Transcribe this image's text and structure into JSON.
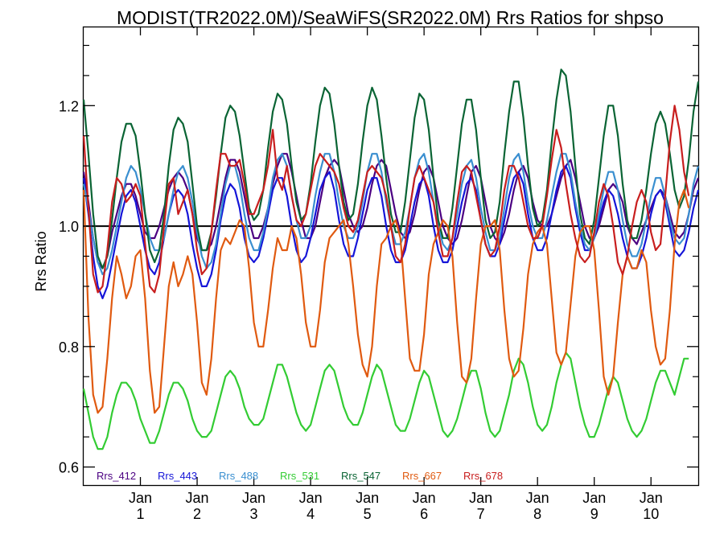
{
  "chart_data": {
    "type": "line",
    "title": "MODIST(TR2022.0M)/SeaWiFS(SR2022.0M)  Rrs Ratios for shpso",
    "ylabel": "Rrs Ratio",
    "xlabel": "",
    "ylim": [
      0.57,
      1.33
    ],
    "y_ticks": [
      {
        "value": 0.6,
        "label": "0.6"
      },
      {
        "value": 0.8,
        "label": "0.8"
      },
      {
        "value": 1.0,
        "label": "1.0"
      },
      {
        "value": 1.2,
        "label": "1.2"
      }
    ],
    "x_ticks": [
      {
        "month": 12,
        "top": "Jan",
        "bottom": "1"
      },
      {
        "month": 24,
        "top": "Jan",
        "bottom": "2"
      },
      {
        "month": 36,
        "top": "Jan",
        "bottom": "3"
      },
      {
        "month": 48,
        "top": "Jan",
        "bottom": "4"
      },
      {
        "month": 60,
        "top": "Jan",
        "bottom": "5"
      },
      {
        "month": 72,
        "top": "Jan",
        "bottom": "6"
      },
      {
        "month": 84,
        "top": "Jan",
        "bottom": "7"
      },
      {
        "month": 96,
        "top": "Jan",
        "bottom": "8"
      },
      {
        "month": 108,
        "top": "Jan",
        "bottom": "9"
      },
      {
        "month": 120,
        "top": "Jan",
        "bottom": "10"
      }
    ],
    "xlim": [
      0,
      130
    ],
    "reference_line": 1.0,
    "grid": false,
    "legend_position": "bottom-left inside plot",
    "series": [
      {
        "name": "Rrs_412",
        "color": "#4b0082",
        "values": [
          1.09,
          1.04,
          0.98,
          0.94,
          0.93,
          0.95,
          0.99,
          1.02,
          1.05,
          1.07,
          1.07,
          1.05,
          1.02,
          0.99,
          0.98,
          0.98,
          1.0,
          1.03,
          1.06,
          1.08,
          1.09,
          1.08,
          1.06,
          1.02,
          0.98,
          0.96,
          0.96,
          0.97,
          1.0,
          1.04,
          1.08,
          1.11,
          1.11,
          1.09,
          1.05,
          1.01,
          0.98,
          0.98,
          1.0,
          1.03,
          1.07,
          1.1,
          1.12,
          1.12,
          1.09,
          1.05,
          1.01,
          0.98,
          0.98,
          1.0,
          1.04,
          1.08,
          1.1,
          1.11,
          1.1,
          1.06,
          1.02,
          1.0,
          0.99,
          1.0,
          1.03,
          1.07,
          1.1,
          1.11,
          1.1,
          1.06,
          1.02,
          0.99,
          0.98,
          0.99,
          1.02,
          1.06,
          1.09,
          1.1,
          1.08,
          1.04,
          1.0,
          0.98,
          0.97,
          0.98,
          1.01,
          1.05,
          1.09,
          1.1,
          1.08,
          1.04,
          1.0,
          0.98,
          0.97,
          0.99,
          1.02,
          1.06,
          1.09,
          1.1,
          1.08,
          1.04,
          1.01,
          1.0,
          1.0,
          1.02,
          1.05,
          1.08,
          1.1,
          1.11,
          1.08,
          1.04,
          1.0,
          0.98,
          0.98,
          1.0,
          1.03,
          1.06,
          1.07,
          1.06,
          1.04,
          1.0,
          0.98,
          0.97,
          0.99,
          1.01,
          1.03,
          1.05,
          1.06,
          1.05,
          1.02,
          0.99,
          0.98,
          0.99,
          1.02,
          1.06,
          1.08
        ]
      },
      {
        "name": "Rrs_443",
        "color": "#1515d8",
        "values": [
          1.08,
          1.02,
          0.95,
          0.9,
          0.88,
          0.9,
          0.94,
          0.98,
          1.02,
          1.05,
          1.06,
          1.04,
          1.0,
          0.96,
          0.93,
          0.92,
          0.94,
          0.98,
          1.02,
          1.05,
          1.06,
          1.05,
          1.02,
          0.97,
          0.93,
          0.9,
          0.9,
          0.92,
          0.96,
          1.01,
          1.05,
          1.07,
          1.06,
          1.03,
          0.98,
          0.95,
          0.94,
          0.95,
          0.98,
          1.02,
          1.06,
          1.08,
          1.08,
          1.05,
          1.0,
          0.96,
          0.94,
          0.95,
          0.98,
          1.02,
          1.06,
          1.08,
          1.09,
          1.06,
          1.01,
          0.97,
          0.95,
          0.95,
          0.98,
          1.02,
          1.06,
          1.08,
          1.08,
          1.05,
          1.0,
          0.96,
          0.94,
          0.94,
          0.96,
          1.0,
          1.04,
          1.07,
          1.08,
          1.05,
          1.0,
          0.96,
          0.94,
          0.94,
          0.96,
          1.0,
          1.04,
          1.07,
          1.08,
          1.06,
          1.01,
          0.97,
          0.95,
          0.95,
          0.97,
          1.01,
          1.05,
          1.08,
          1.09,
          1.07,
          1.02,
          0.98,
          0.96,
          0.96,
          0.98,
          1.02,
          1.06,
          1.09,
          1.1,
          1.08,
          1.03,
          0.99,
          0.96,
          0.96,
          0.98,
          1.01,
          1.04,
          1.06,
          1.05,
          1.02,
          0.98,
          0.95,
          0.93,
          0.93,
          0.95,
          0.98,
          1.02,
          1.05,
          1.06,
          1.04,
          1.0,
          0.96,
          0.95,
          0.96,
          0.99,
          1.03,
          1.06
        ]
      },
      {
        "name": "Rrs_488",
        "color": "#3a8fd0",
        "values": [
          1.07,
          1.03,
          0.98,
          0.94,
          0.92,
          0.93,
          0.96,
          1.0,
          1.04,
          1.08,
          1.1,
          1.09,
          1.06,
          1.02,
          0.98,
          0.96,
          0.96,
          0.98,
          1.02,
          1.06,
          1.09,
          1.1,
          1.08,
          1.04,
          0.99,
          0.95,
          0.93,
          0.94,
          0.97,
          1.02,
          1.07,
          1.1,
          1.1,
          1.07,
          1.02,
          0.98,
          0.96,
          0.96,
          0.99,
          1.03,
          1.08,
          1.11,
          1.12,
          1.1,
          1.05,
          1.01,
          0.98,
          0.98,
          1.0,
          1.05,
          1.09,
          1.12,
          1.12,
          1.09,
          1.04,
          1.0,
          0.98,
          0.98,
          1.0,
          1.04,
          1.09,
          1.12,
          1.12,
          1.09,
          1.04,
          1.0,
          0.97,
          0.97,
          0.99,
          1.03,
          1.08,
          1.11,
          1.12,
          1.09,
          1.04,
          1.0,
          0.97,
          0.96,
          0.98,
          1.02,
          1.07,
          1.1,
          1.11,
          1.08,
          1.03,
          0.99,
          0.96,
          0.96,
          0.98,
          1.03,
          1.08,
          1.11,
          1.12,
          1.09,
          1.04,
          1.0,
          0.98,
          0.98,
          1.01,
          1.05,
          1.09,
          1.12,
          1.12,
          1.09,
          1.04,
          1.0,
          0.97,
          0.96,
          0.98,
          1.02,
          1.06,
          1.09,
          1.09,
          1.06,
          1.01,
          0.97,
          0.95,
          0.95,
          0.97,
          1.01,
          1.05,
          1.08,
          1.08,
          1.05,
          1.01,
          0.98,
          0.97,
          0.98,
          1.02,
          1.07,
          1.1
        ]
      },
      {
        "name": "Rrs_531",
        "color": "#33cc33",
        "values": [
          0.73,
          0.69,
          0.65,
          0.63,
          0.63,
          0.65,
          0.69,
          0.72,
          0.74,
          0.74,
          0.73,
          0.71,
          0.68,
          0.66,
          0.64,
          0.64,
          0.66,
          0.69,
          0.72,
          0.74,
          0.74,
          0.73,
          0.71,
          0.68,
          0.66,
          0.65,
          0.65,
          0.66,
          0.69,
          0.72,
          0.75,
          0.76,
          0.75,
          0.73,
          0.7,
          0.68,
          0.67,
          0.67,
          0.68,
          0.71,
          0.74,
          0.77,
          0.77,
          0.75,
          0.72,
          0.69,
          0.67,
          0.66,
          0.67,
          0.7,
          0.73,
          0.76,
          0.77,
          0.76,
          0.73,
          0.7,
          0.68,
          0.67,
          0.67,
          0.69,
          0.72,
          0.75,
          0.77,
          0.76,
          0.73,
          0.7,
          0.67,
          0.66,
          0.66,
          0.68,
          0.71,
          0.74,
          0.76,
          0.75,
          0.72,
          0.69,
          0.66,
          0.65,
          0.66,
          0.68,
          0.71,
          0.74,
          0.76,
          0.76,
          0.73,
          0.69,
          0.66,
          0.65,
          0.66,
          0.69,
          0.72,
          0.76,
          0.78,
          0.77,
          0.74,
          0.7,
          0.67,
          0.66,
          0.67,
          0.7,
          0.74,
          0.77,
          0.79,
          0.78,
          0.74,
          0.7,
          0.67,
          0.65,
          0.65,
          0.67,
          0.7,
          0.73,
          0.75,
          0.74,
          0.71,
          0.68,
          0.66,
          0.65,
          0.66,
          0.68,
          0.71,
          0.74,
          0.76,
          0.76,
          0.74,
          0.72,
          0.75,
          0.78,
          0.78
        ]
      },
      {
        "name": "Rrs_547",
        "color": "#0a6434",
        "values": [
          1.21,
          1.12,
          1.02,
          0.95,
          0.93,
          0.95,
          1.01,
          1.08,
          1.14,
          1.17,
          1.17,
          1.15,
          1.09,
          1.02,
          0.96,
          0.94,
          0.96,
          1.02,
          1.1,
          1.16,
          1.18,
          1.17,
          1.14,
          1.07,
          1.0,
          0.96,
          0.96,
          0.99,
          1.05,
          1.12,
          1.18,
          1.2,
          1.19,
          1.15,
          1.09,
          1.03,
          1.01,
          1.02,
          1.06,
          1.13,
          1.19,
          1.22,
          1.21,
          1.17,
          1.1,
          1.04,
          1.01,
          1.02,
          1.07,
          1.14,
          1.2,
          1.23,
          1.22,
          1.17,
          1.1,
          1.04,
          1.01,
          1.02,
          1.07,
          1.14,
          1.2,
          1.23,
          1.21,
          1.15,
          1.08,
          1.02,
          0.99,
          0.99,
          1.04,
          1.11,
          1.18,
          1.22,
          1.21,
          1.16,
          1.08,
          1.01,
          0.98,
          0.98,
          1.03,
          1.1,
          1.17,
          1.21,
          1.21,
          1.16,
          1.08,
          1.01,
          0.98,
          0.99,
          1.04,
          1.12,
          1.19,
          1.24,
          1.24,
          1.18,
          1.1,
          1.03,
          1.0,
          1.01,
          1.06,
          1.14,
          1.21,
          1.26,
          1.25,
          1.19,
          1.1,
          1.02,
          0.98,
          0.97,
          1.01,
          1.08,
          1.15,
          1.2,
          1.2,
          1.15,
          1.07,
          1.01,
          0.98,
          0.98,
          1.01,
          1.06,
          1.12,
          1.17,
          1.19,
          1.17,
          1.12,
          1.06,
          1.03,
          1.05,
          1.11,
          1.19,
          1.24
        ]
      },
      {
        "name": "Rrs_667",
        "color": "#e05a10",
        "values": [
          1.06,
          0.85,
          0.72,
          0.69,
          0.7,
          0.78,
          0.88,
          0.95,
          0.92,
          0.88,
          0.9,
          0.95,
          0.96,
          0.88,
          0.76,
          0.69,
          0.7,
          0.8,
          0.9,
          0.94,
          0.9,
          0.92,
          0.95,
          0.92,
          0.84,
          0.74,
          0.72,
          0.78,
          0.88,
          0.96,
          0.98,
          0.97,
          0.99,
          1.01,
          1.0,
          0.93,
          0.84,
          0.8,
          0.8,
          0.86,
          0.93,
          0.98,
          0.96,
          0.96,
          1.0,
          0.98,
          0.92,
          0.84,
          0.8,
          0.8,
          0.86,
          0.94,
          0.98,
          0.99,
          1.0,
          1.01,
          0.97,
          0.9,
          0.82,
          0.77,
          0.75,
          0.8,
          0.9,
          0.97,
          0.98,
          1.0,
          1.01,
          0.98,
          0.88,
          0.78,
          0.76,
          0.76,
          0.82,
          0.92,
          0.97,
          0.99,
          1.01,
          1.0,
          0.95,
          0.84,
          0.75,
          0.74,
          0.78,
          0.88,
          0.97,
          1.0,
          1.0,
          1.01,
          0.96,
          0.86,
          0.78,
          0.75,
          0.76,
          0.83,
          0.92,
          0.97,
          0.99,
          1.0,
          0.97,
          0.88,
          0.79,
          0.77,
          0.79,
          0.87,
          0.95,
          0.99,
          1.0,
          1.0,
          0.96,
          0.86,
          0.75,
          0.72,
          0.75,
          0.84,
          0.92,
          0.95,
          0.93,
          0.93,
          0.96,
          0.94,
          0.86,
          0.8,
          0.77,
          0.78,
          0.86,
          0.97,
          1.04,
          1.06,
          1.03
        ]
      },
      {
        "name": "Rrs_678",
        "color": "#c81e1e",
        "values": [
          1.15,
          1.03,
          0.92,
          0.89,
          0.9,
          0.96,
          1.04,
          1.08,
          1.07,
          1.04,
          1.05,
          1.07,
          1.05,
          0.97,
          0.9,
          0.89,
          0.92,
          1.0,
          1.07,
          1.08,
          1.02,
          1.04,
          1.06,
          1.02,
          0.96,
          0.92,
          0.93,
          0.99,
          1.06,
          1.12,
          1.12,
          1.1,
          1.1,
          1.11,
          1.07,
          1.02,
          1.02,
          1.04,
          1.06,
          1.1,
          1.16,
          1.08,
          1.06,
          1.1,
          1.05,
          1.01,
          1.0,
          1.02,
          1.06,
          1.1,
          1.12,
          1.11,
          1.1,
          1.09,
          1.07,
          1.03,
          1.0,
          0.99,
          1.01,
          1.05,
          1.09,
          1.1,
          1.09,
          1.08,
          1.05,
          1.0,
          0.95,
          0.94,
          0.97,
          1.03,
          1.08,
          1.1,
          1.08,
          1.06,
          1.04,
          0.99,
          0.95,
          0.95,
          0.98,
          1.04,
          1.09,
          1.1,
          1.09,
          1.05,
          1.01,
          0.97,
          0.95,
          0.96,
          1.0,
          1.06,
          1.1,
          1.1,
          1.08,
          1.04,
          1.0,
          0.98,
          0.98,
          1.0,
          1.05,
          1.11,
          1.16,
          1.13,
          1.07,
          1.02,
          0.98,
          0.95,
          0.94,
          0.95,
          0.99,
          1.04,
          1.07,
          1.05,
          1.0,
          0.94,
          0.92,
          0.95,
          1.0,
          1.04,
          1.06,
          1.04,
          0.99,
          0.96,
          0.97,
          1.05,
          1.14,
          1.2,
          1.16,
          1.09,
          1.05
        ]
      }
    ]
  }
}
